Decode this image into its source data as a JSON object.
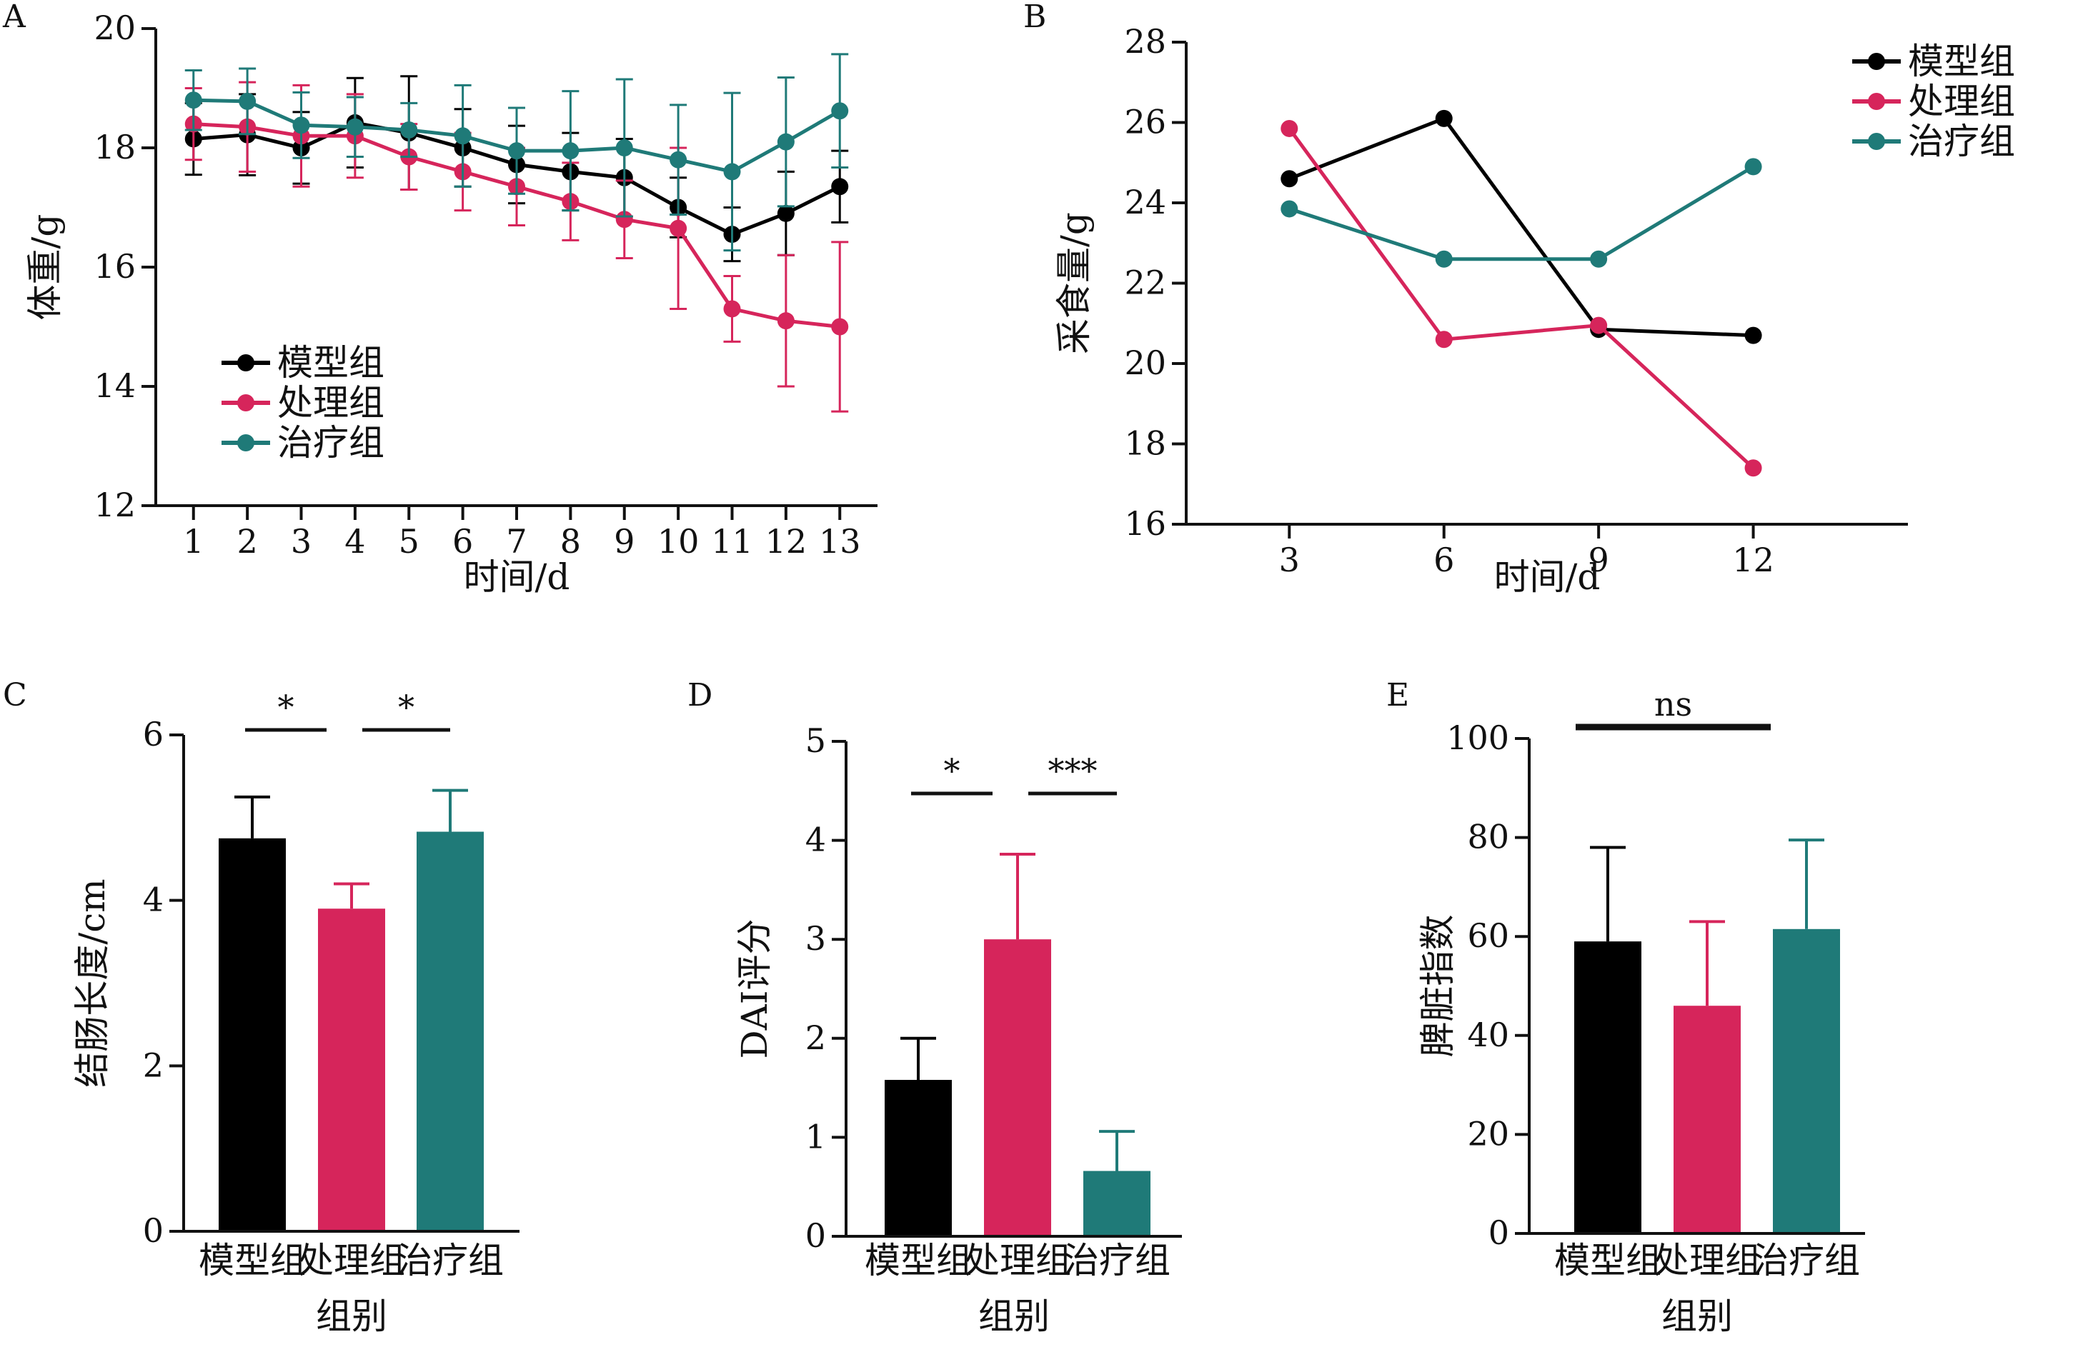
{
  "colors": {
    "模型组": "#000000",
    "处理组": "#d6255b",
    "治疗组": "#1f7a78"
  },
  "chart_data": [
    {
      "panel": "A",
      "type": "line",
      "xlabel": "时间/d",
      "ylabel": "体重/g",
      "x": [
        1,
        2,
        3,
        4,
        5,
        6,
        7,
        8,
        9,
        10,
        11,
        12,
        13
      ],
      "ylim": [
        12,
        20
      ],
      "yticks": [
        12,
        14,
        16,
        18,
        20
      ],
      "legend": "lower-left",
      "series": [
        {
          "name": "模型组",
          "values": [
            18.15,
            18.22,
            18.0,
            18.42,
            18.25,
            18.0,
            17.72,
            17.6,
            17.5,
            17.0,
            16.55,
            16.9,
            17.35
          ],
          "err": [
            0.6,
            0.68,
            0.6,
            0.75,
            0.95,
            0.65,
            0.65,
            0.65,
            0.65,
            0.5,
            0.45,
            0.7,
            0.6
          ]
        },
        {
          "name": "处理组",
          "values": [
            18.4,
            18.35,
            18.2,
            18.2,
            17.85,
            17.6,
            17.35,
            17.1,
            16.8,
            16.65,
            15.3,
            15.1,
            15.0
          ],
          "err": [
            0.6,
            0.75,
            0.85,
            0.7,
            0.55,
            0.65,
            0.65,
            0.65,
            0.65,
            1.35,
            0.55,
            1.1,
            1.42
          ]
        },
        {
          "name": "治疗组",
          "values": [
            18.8,
            18.78,
            18.38,
            18.35,
            18.3,
            18.2,
            17.95,
            17.95,
            18.0,
            17.8,
            17.6,
            18.1,
            18.62
          ],
          "err": [
            0.5,
            0.55,
            0.55,
            0.5,
            0.45,
            0.85,
            0.72,
            1.0,
            1.15,
            0.92,
            1.32,
            1.08,
            0.95
          ]
        }
      ]
    },
    {
      "panel": "B",
      "type": "line",
      "xlabel": "时间/d",
      "ylabel": "采食量/g",
      "x": [
        3,
        6,
        9,
        12
      ],
      "xlim": [
        1,
        15
      ],
      "ylim": [
        16,
        28
      ],
      "yticks": [
        16,
        18,
        20,
        22,
        24,
        26,
        28
      ],
      "legend": "top-right",
      "series": [
        {
          "name": "模型组",
          "values": [
            24.6,
            26.1,
            20.85,
            20.7
          ]
        },
        {
          "name": "处理组",
          "values": [
            25.85,
            20.6,
            20.95,
            17.4
          ]
        },
        {
          "name": "治疗组",
          "values": [
            23.85,
            22.6,
            22.6,
            24.9
          ]
        }
      ]
    },
    {
      "panel": "C",
      "type": "bar",
      "xlabel": "组别",
      "ylabel": "结肠长度/cm",
      "categories": [
        "模型组",
        "处理组",
        "治疗组"
      ],
      "values": [
        4.75,
        3.9,
        4.83
      ],
      "err": [
        0.5,
        0.3,
        0.5
      ],
      "ylim": [
        0,
        6
      ],
      "yticks": [
        0,
        2,
        4,
        6
      ],
      "significance": [
        {
          "from": 0,
          "to": 1,
          "label": "*"
        },
        {
          "from": 1,
          "to": 2,
          "label": "*"
        }
      ]
    },
    {
      "panel": "D",
      "type": "bar",
      "xlabel": "组别",
      "ylabel": "DAI评分",
      "categories": [
        "模型组",
        "处理组",
        "治疗组"
      ],
      "values": [
        1.58,
        3.0,
        0.66
      ],
      "err": [
        0.42,
        0.86,
        0.4
      ],
      "ylim": [
        0,
        5
      ],
      "yticks": [
        0,
        1,
        2,
        3,
        4,
        5
      ],
      "significance": [
        {
          "from": 0,
          "to": 1,
          "label": "*"
        },
        {
          "from": 1,
          "to": 2,
          "label": "***"
        }
      ]
    },
    {
      "panel": "E",
      "type": "bar",
      "xlabel": "组别",
      "ylabel": "脾脏指数",
      "categories": [
        "模型组",
        "处理组",
        "治疗组"
      ],
      "values": [
        59,
        46,
        61.5
      ],
      "err": [
        19,
        17,
        18
      ],
      "ylim": [
        0,
        100
      ],
      "yticks": [
        0,
        20,
        40,
        60,
        80,
        100
      ],
      "significance": [
        {
          "from": 0,
          "to": 2,
          "label": "ns"
        }
      ]
    }
  ]
}
